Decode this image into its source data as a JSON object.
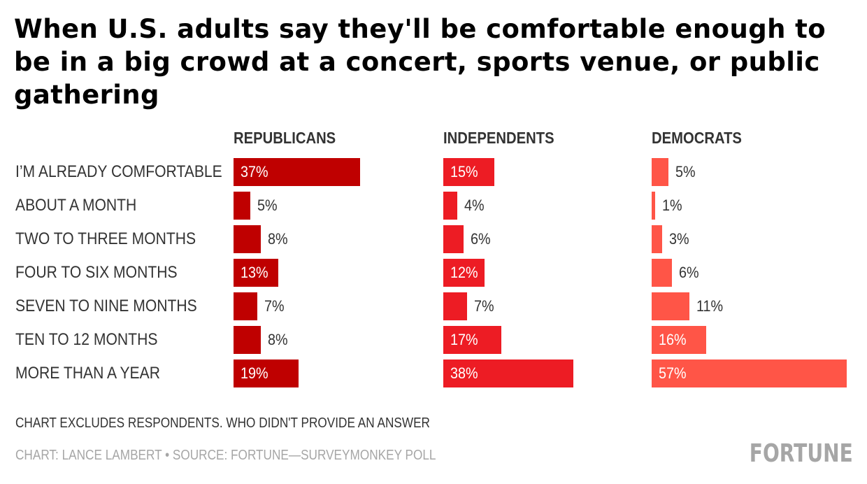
{
  "title": "When U.S. adults say they'll be comfortable enough to be in a big crowd at a concert, sports venue, or public gathering",
  "note": "CHART EXCLUDES RESPONDENTS. WHO DIDN'T PROVIDE AN ANSWER",
  "credit": "CHART: LANCE LAMBERT • SOURCE: FORTUNE—SURVEYMONKEY POLL",
  "logo": "FORTUNE",
  "chart_data": {
    "type": "bar",
    "orientation": "horizontal",
    "title": "When U.S. adults say they'll be comfortable enough to be in a big crowd at a concert, sports venue, or public gathering",
    "unit": "%",
    "categories": [
      "I’M ALREADY COMFORTABLE",
      "ABOUT A MONTH",
      "TWO TO THREE MONTHS",
      "FOUR TO SIX MONTHS",
      "SEVEN TO NINE MONTHS",
      "TEN TO 12 MONTHS",
      "MORE THAN A YEAR"
    ],
    "series": [
      {
        "name": "REPUBLICANS",
        "color": "#bf0000",
        "values": [
          37,
          5,
          8,
          13,
          7,
          8,
          19
        ],
        "labels": [
          "37%",
          "5%",
          "8%",
          "13%",
          "7%",
          "8%",
          "19%"
        ]
      },
      {
        "name": "INDEPENDENTS",
        "color": "#ed1c24",
        "values": [
          15,
          4,
          6,
          12,
          7,
          17,
          38
        ],
        "labels": [
          "15%",
          "4%",
          "6%",
          "12%",
          "7%",
          "17%",
          "38%"
        ]
      },
      {
        "name": "DEMOCRATS",
        "color": "#ff5547",
        "values": [
          5,
          1,
          3,
          6,
          11,
          16,
          57
        ],
        "labels": [
          "5%",
          "1%",
          "3%",
          "6%",
          "11%",
          "16%",
          "57%"
        ]
      }
    ],
    "xlim": [
      0,
      57
    ],
    "grid": false,
    "legend": "none"
  }
}
